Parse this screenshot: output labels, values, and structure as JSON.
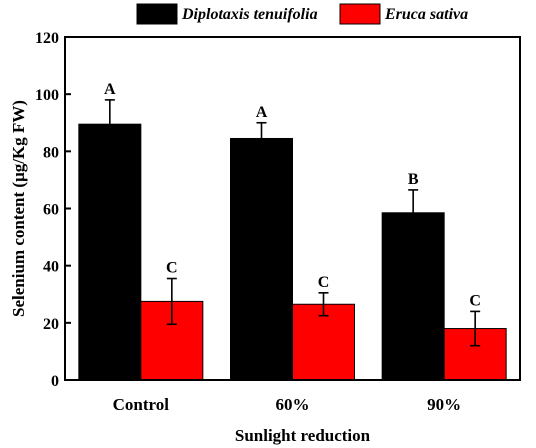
{
  "chart_data": {
    "type": "bar",
    "title": "",
    "xlabel": "Sunlight reduction",
    "ylabel": "Selenium content (μg/Kg FW)",
    "ylim": [
      0,
      120
    ],
    "yticks": [
      0,
      20,
      40,
      60,
      80,
      100,
      120
    ],
    "categories": [
      "Control",
      "60%",
      "90%"
    ],
    "legend_position": "top",
    "series": [
      {
        "name": "Diplotaxis tenuifolia",
        "color": "#000000",
        "values": [
          89.5,
          84.5,
          58.5
        ],
        "errors": [
          8.5,
          5.5,
          8.0
        ],
        "letters": [
          "A",
          "A",
          "B"
        ]
      },
      {
        "name": "Eruca sativa",
        "color": "#ff0000",
        "values": [
          27.5,
          26.5,
          18.0
        ],
        "errors": [
          8.0,
          4.0,
          6.0
        ],
        "letters": [
          "C",
          "C",
          "C"
        ]
      }
    ]
  }
}
